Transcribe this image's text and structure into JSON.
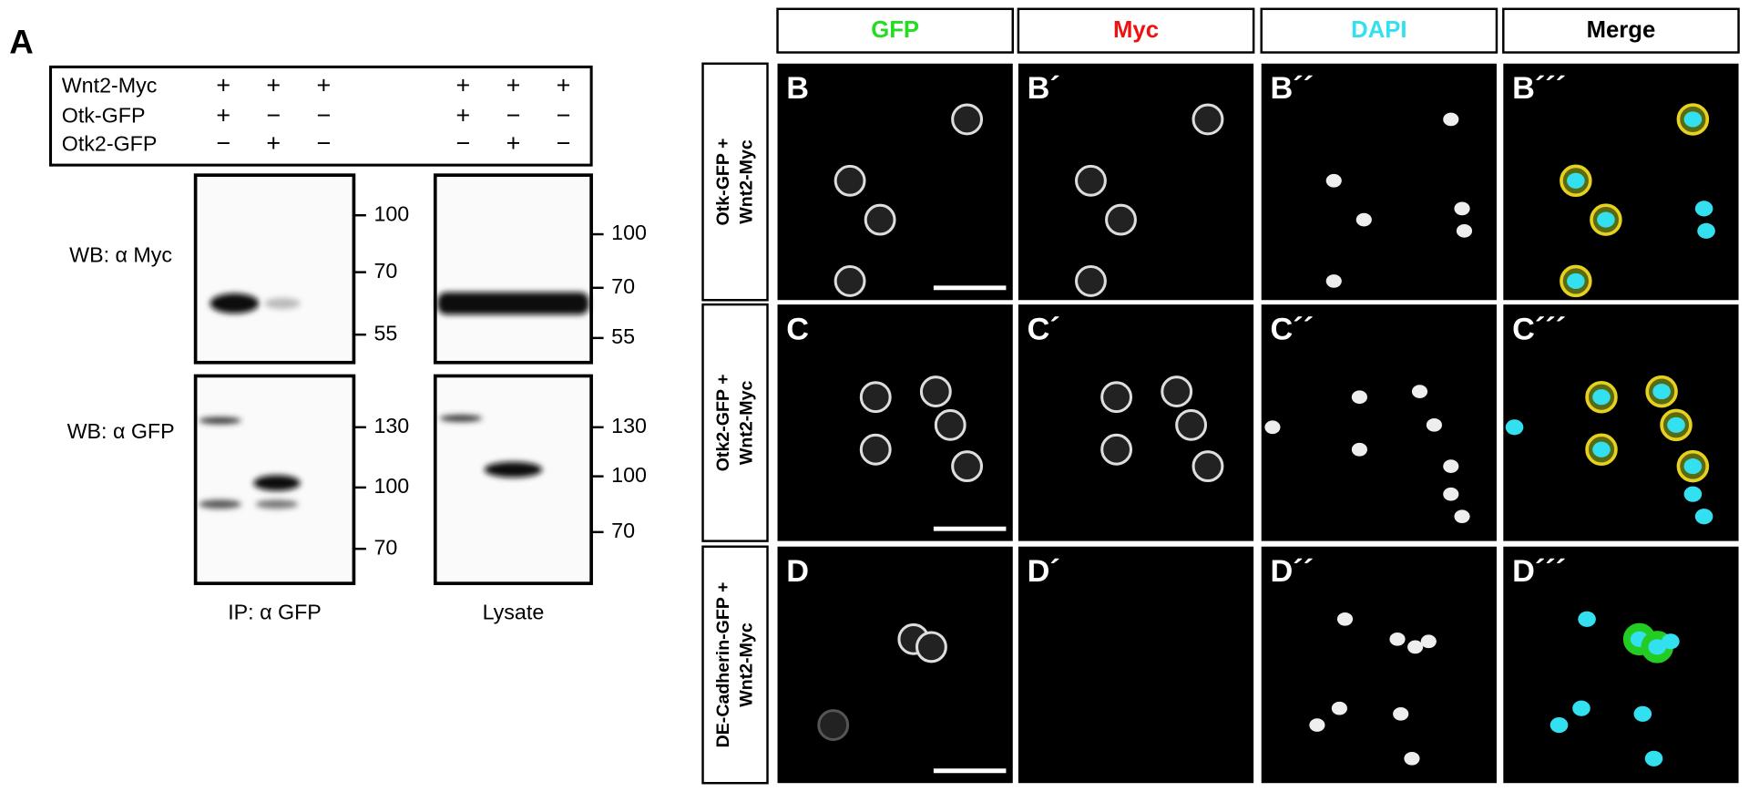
{
  "panel_a": {
    "label": "A",
    "treatments": [
      {
        "name": "Wnt2-Myc",
        "signs": [
          "+",
          "+",
          "+",
          "+",
          "+",
          "+"
        ]
      },
      {
        "name": "Otk-GFP",
        "signs": [
          "+",
          "−",
          "−",
          "+",
          "−",
          "−"
        ]
      },
      {
        "name": "Otk2-GFP",
        "signs": [
          "−",
          "+",
          "−",
          "−",
          "+",
          "−"
        ]
      }
    ],
    "blots": [
      {
        "label": "WB: α Myc",
        "ip_markers": [
          100,
          70,
          55
        ],
        "lysate_markers": [
          100,
          70,
          55
        ]
      },
      {
        "label": "WB: α GFP",
        "ip_markers": [
          130,
          100,
          70
        ],
        "lysate_markers": [
          130,
          100,
          70
        ]
      }
    ],
    "lane_groups": [
      "IP: α GFP",
      "Lysate"
    ]
  },
  "panels": {
    "columns": [
      "GFP",
      "Myc",
      "DAPI",
      "Merge"
    ],
    "rows": [
      {
        "label_lines": [
          "Otk-GFP +",
          "Wnt2-Myc"
        ],
        "letters": [
          "B",
          "B´",
          "B´´",
          "B´´´"
        ]
      },
      {
        "label_lines": [
          "Otk2-GFP +",
          "Wnt2-Myc"
        ],
        "letters": [
          "C",
          "C´",
          "C´´",
          "C´´´"
        ]
      },
      {
        "label_lines": [
          "DE-Cadherin-GFP +",
          "Wnt2-Myc"
        ],
        "letters": [
          "D",
          "D´",
          "D´´",
          "D´´´"
        ]
      }
    ]
  }
}
